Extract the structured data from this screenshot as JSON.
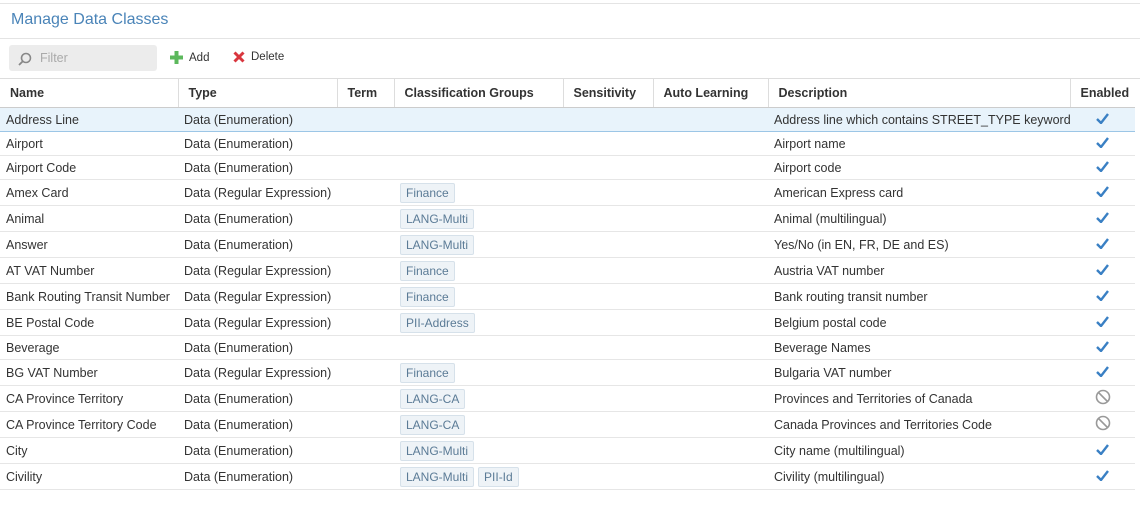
{
  "header": {
    "title": "Manage Data Classes"
  },
  "toolbar": {
    "filter_placeholder": "Filter",
    "add": "Add",
    "delete": "Delete"
  },
  "table": {
    "columns": [
      "Name",
      "Type",
      "Term",
      "Classification Groups",
      "Sensitivity",
      "Auto Learning",
      "Description",
      "Enabled"
    ],
    "rows": [
      {
        "name": "Address Line",
        "type": "Data (Enumeration)",
        "groups": [],
        "description": "Address line which contains STREET_TYPE keyword",
        "enabled": true,
        "selected": true
      },
      {
        "name": "Airport",
        "type": "Data (Enumeration)",
        "groups": [],
        "description": "Airport name",
        "enabled": true
      },
      {
        "name": "Airport Code",
        "type": "Data (Enumeration)",
        "groups": [],
        "description": "Airport code",
        "enabled": true
      },
      {
        "name": "Amex Card",
        "type": "Data (Regular Expression)",
        "groups": [
          "Finance"
        ],
        "description": "American Express card",
        "enabled": true
      },
      {
        "name": "Animal",
        "type": "Data (Enumeration)",
        "groups": [
          "LANG-Multi"
        ],
        "description": "Animal (multilingual)",
        "enabled": true
      },
      {
        "name": "Answer",
        "type": "Data (Enumeration)",
        "groups": [
          "LANG-Multi"
        ],
        "description": "Yes/No (in EN, FR, DE and ES)",
        "enabled": true
      },
      {
        "name": "AT VAT Number",
        "type": "Data (Regular Expression)",
        "groups": [
          "Finance"
        ],
        "description": "Austria VAT number",
        "enabled": true
      },
      {
        "name": "Bank Routing Transit Number",
        "type": "Data (Regular Expression)",
        "groups": [
          "Finance"
        ],
        "description": "Bank routing transit number",
        "enabled": true
      },
      {
        "name": "BE Postal Code",
        "type": "Data (Regular Expression)",
        "groups": [
          "PII-Address"
        ],
        "description": "Belgium postal code",
        "enabled": true
      },
      {
        "name": "Beverage",
        "type": "Data (Enumeration)",
        "groups": [],
        "description": "Beverage Names",
        "enabled": true
      },
      {
        "name": "BG VAT Number",
        "type": "Data (Regular Expression)",
        "groups": [
          "Finance"
        ],
        "description": "Bulgaria VAT number",
        "enabled": true
      },
      {
        "name": "CA Province Territory",
        "type": "Data (Enumeration)",
        "groups": [
          "LANG-CA"
        ],
        "description": "Provinces and Territories of Canada",
        "enabled": false
      },
      {
        "name": "CA Province Territory Code",
        "type": "Data (Enumeration)",
        "groups": [
          "LANG-CA"
        ],
        "description": "Canada Provinces and Territories Code",
        "enabled": false
      },
      {
        "name": "City",
        "type": "Data (Enumeration)",
        "groups": [
          "LANG-Multi"
        ],
        "description": "City name (multilingual)",
        "enabled": true
      },
      {
        "name": "Civility",
        "type": "Data (Enumeration)",
        "groups": [
          "LANG-Multi",
          "PII-Id"
        ],
        "description": "Civility (multilingual)",
        "enabled": true
      }
    ]
  }
}
